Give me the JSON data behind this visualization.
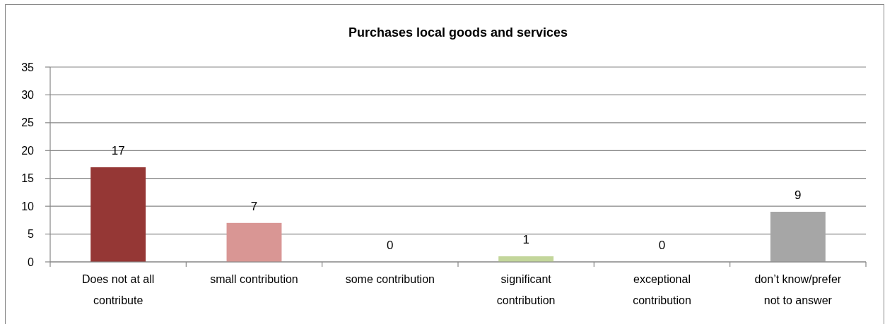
{
  "chart_data": {
    "type": "bar",
    "title": "Purchases local goods and services",
    "categories": [
      "Does not at all contribute",
      "small contribution",
      "some contribution",
      "significant contribution",
      "exceptional contribution",
      "don’t know/prefer not to answer"
    ],
    "values": [
      17,
      7,
      0,
      1,
      0,
      9
    ],
    "colors": [
      "#953735",
      "#d99694",
      "#c3d69b",
      "#c3d69b",
      "#c3d69b",
      "#a6a6a6"
    ],
    "ylim": [
      0,
      35
    ],
    "yticks": [
      0,
      5,
      10,
      15,
      20,
      25,
      30,
      35
    ],
    "grid": "y",
    "data_labels": true
  }
}
